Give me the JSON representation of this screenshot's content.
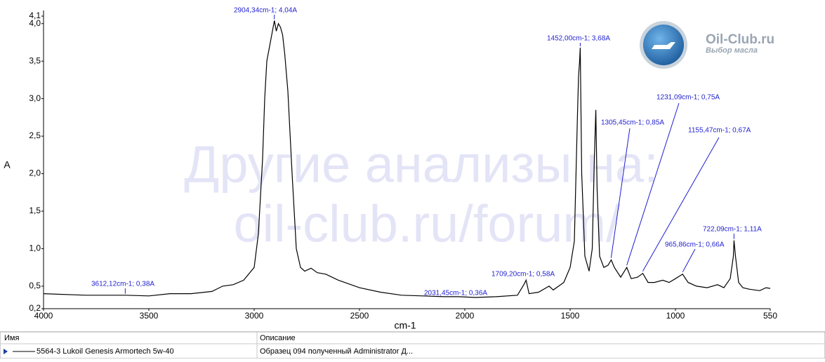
{
  "chart_data": {
    "type": "line",
    "x_label": "cm-1",
    "y_label": "A",
    "xlim": [
      4000,
      550
    ],
    "ylim": [
      0.2,
      4.1
    ],
    "xticks": [
      4000,
      3500,
      3000,
      2500,
      2000,
      1500,
      1000,
      550
    ],
    "yticks": [
      {
        "value": 0.2,
        "label": "0,2"
      },
      {
        "value": 0.5,
        "label": "0,5"
      },
      {
        "value": 1.0,
        "label": "1,0"
      },
      {
        "value": 1.5,
        "label": "1,5"
      },
      {
        "value": 2.0,
        "label": "2,0"
      },
      {
        "value": 2.5,
        "label": "2,5"
      },
      {
        "value": 3.0,
        "label": "3,0"
      },
      {
        "value": 3.5,
        "label": "3,5"
      },
      {
        "value": 4.0,
        "label": "4,0"
      },
      {
        "value": 4.1,
        "label": "4,1"
      }
    ],
    "x": [
      4000,
      3800,
      3612,
      3500,
      3400,
      3300,
      3200,
      3150,
      3100,
      3050,
      3000,
      2980,
      2960,
      2950,
      2940,
      2930,
      2920,
      2910,
      2904,
      2895,
      2885,
      2875,
      2865,
      2855,
      2840,
      2820,
      2800,
      2780,
      2760,
      2730,
      2700,
      2660,
      2600,
      2500,
      2400,
      2300,
      2200,
      2100,
      2031,
      1950,
      1850,
      1750,
      1720,
      1709,
      1695,
      1650,
      1600,
      1580,
      1530,
      1500,
      1480,
      1465,
      1460,
      1455,
      1452,
      1445,
      1430,
      1410,
      1395,
      1385,
      1378,
      1372,
      1360,
      1340,
      1320,
      1305,
      1290,
      1260,
      1231,
      1210,
      1180,
      1155,
      1130,
      1100,
      1060,
      1030,
      1000,
      966,
      940,
      900,
      850,
      800,
      770,
      740,
      725,
      722,
      715,
      700,
      680,
      650,
      600,
      570,
      550
    ],
    "series": [
      {
        "name": "5564-3 Lukoil Genesis Armortech 5w-40",
        "color": "#000000",
        "values": [
          0.4,
          0.38,
          0.38,
          0.37,
          0.4,
          0.4,
          0.43,
          0.5,
          0.52,
          0.58,
          0.75,
          1.2,
          2.2,
          3.0,
          3.5,
          3.65,
          3.8,
          3.95,
          4.04,
          3.9,
          4.0,
          3.95,
          3.85,
          3.6,
          3.1,
          2.0,
          1.0,
          0.75,
          0.7,
          0.74,
          0.68,
          0.66,
          0.58,
          0.48,
          0.42,
          0.38,
          0.37,
          0.36,
          0.36,
          0.35,
          0.36,
          0.38,
          0.52,
          0.58,
          0.4,
          0.42,
          0.5,
          0.45,
          0.55,
          0.75,
          1.1,
          2.8,
          3.3,
          3.5,
          3.68,
          2.0,
          0.9,
          0.7,
          1.0,
          2.2,
          2.85,
          1.8,
          0.9,
          0.75,
          0.78,
          0.85,
          0.75,
          0.62,
          0.75,
          0.6,
          0.62,
          0.67,
          0.55,
          0.55,
          0.58,
          0.55,
          0.6,
          0.66,
          0.55,
          0.5,
          0.48,
          0.52,
          0.48,
          0.6,
          0.9,
          1.11,
          0.9,
          0.55,
          0.48,
          0.46,
          0.44,
          0.48,
          0.47
        ]
      }
    ],
    "annotation_color": "#1f1fd0",
    "annotations": [
      {
        "text": "3612,12cm-1; 0,38A",
        "x": 3612.12,
        "y": 0.38
      },
      {
        "text": "2904,34cm-1; 4,04A",
        "x": 2904.34,
        "y": 4.04
      },
      {
        "text": "2031,45cm-1; 0,36A",
        "x": 2031.45,
        "y": 0.36
      },
      {
        "text": "1709,20cm-1; 0,58A",
        "x": 1709.2,
        "y": 0.58
      },
      {
        "text": "1452,00cm-1; 3,68A",
        "x": 1452.0,
        "y": 3.68
      },
      {
        "text": "1305,45cm-1; 0,85A",
        "x": 1305.45,
        "y": 0.85
      },
      {
        "text": "1231,09cm-1; 0,75A",
        "x": 1231.09,
        "y": 0.75
      },
      {
        "text": "1155,47cm-1; 0,67A",
        "x": 1155.47,
        "y": 0.67
      },
      {
        "text": "965,86cm-1; 0,66A",
        "x": 965.86,
        "y": 0.66
      },
      {
        "text": "722,09cm-1; 1,11A",
        "x": 722.09,
        "y": 1.11
      }
    ]
  },
  "watermark": [
    "Другие анализы на:",
    "oil-club.ru/forum/"
  ],
  "logo": {
    "title": "Oil-Club.ru",
    "subtitle": "Выбор масла"
  },
  "table": {
    "headers": [
      "Имя",
      "Описание"
    ],
    "rows": [
      [
        "5564-3 Lukoil Genesis Armortech 5w-40",
        "Образец 094 полученный Administrator Д..."
      ]
    ]
  }
}
